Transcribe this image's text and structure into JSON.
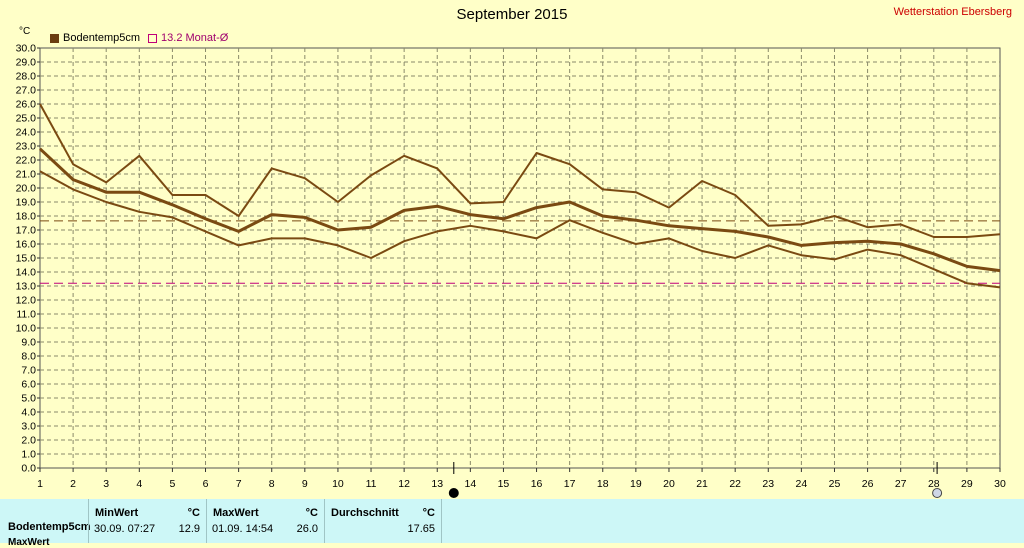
{
  "title": "September 2015",
  "station": "Wetterstation Ebersberg",
  "y_unit": "°C",
  "legend": {
    "series_label": "Bodentemp5cm",
    "avg_label": "13.2 Monat-Ø"
  },
  "colors": {
    "background": "#ffffc8",
    "series": "#7a4a12",
    "avg_line": "#c0007a",
    "grid": "#8a8a6a",
    "table_bg": "#cdf7f7"
  },
  "icons": {
    "new_moon": "new-moon-icon",
    "full_moon": "full-moon-icon"
  },
  "chart_data": {
    "type": "line",
    "title": "September 2015",
    "ylabel": "°C",
    "ylim": [
      0,
      30
    ],
    "xlim": [
      1,
      30
    ],
    "y_ticks": [
      "0.0",
      "1.0",
      "2.0",
      "3.0",
      "4.0",
      "5.0",
      "6.0",
      "7.0",
      "8.0",
      "9.0",
      "10.0",
      "11.0",
      "12.0",
      "13.0",
      "14.0",
      "15.0",
      "16.0",
      "17.0",
      "18.0",
      "19.0",
      "20.0",
      "21.0",
      "22.0",
      "23.0",
      "24.0",
      "25.0",
      "26.0",
      "27.0",
      "28.0",
      "29.0",
      "30.0"
    ],
    "x": [
      1,
      2,
      3,
      4,
      5,
      6,
      7,
      8,
      9,
      10,
      11,
      12,
      13,
      14,
      15,
      16,
      17,
      18,
      19,
      20,
      21,
      22,
      23,
      24,
      25,
      26,
      27,
      28,
      29,
      30
    ],
    "grid": true,
    "series": [
      {
        "name": "Bodentemp5cm",
        "role": "max",
        "values": [
          26.0,
          21.7,
          20.4,
          22.3,
          19.5,
          19.5,
          18.0,
          21.4,
          20.7,
          19.0,
          20.9,
          22.3,
          21.4,
          18.9,
          19.0,
          22.5,
          21.7,
          19.9,
          19.7,
          18.6,
          20.5,
          19.5,
          17.3,
          17.4,
          18.0,
          17.2,
          17.4,
          16.5,
          16.5,
          16.7
        ]
      },
      {
        "name": "Bodentemp5cm",
        "role": "mean",
        "values": [
          22.8,
          20.6,
          19.7,
          19.7,
          18.8,
          17.8,
          16.9,
          18.1,
          17.9,
          17.0,
          17.2,
          18.4,
          18.7,
          18.1,
          17.8,
          18.6,
          19.0,
          18.0,
          17.7,
          17.3,
          17.1,
          16.9,
          16.5,
          15.9,
          16.1,
          16.2,
          16.0,
          15.3,
          14.4,
          14.1
        ]
      },
      {
        "name": "Bodentemp5cm",
        "role": "min",
        "values": [
          21.2,
          19.9,
          19.0,
          18.3,
          17.9,
          16.9,
          15.9,
          16.4,
          16.4,
          15.9,
          15.0,
          16.2,
          16.9,
          17.3,
          16.9,
          16.4,
          17.7,
          16.8,
          16.0,
          16.4,
          15.5,
          15.0,
          15.9,
          15.2,
          14.9,
          15.6,
          15.2,
          14.2,
          13.2,
          12.9
        ]
      }
    ],
    "reference_lines": [
      {
        "label": "13.2 Monat-Ø",
        "value": 13.2,
        "color": "#c0007a",
        "style": "dashed"
      },
      {
        "value": 17.65,
        "color": "#7a4a12",
        "style": "dashed"
      }
    ],
    "moon_markers": [
      {
        "day": 13.5,
        "phase": "new"
      },
      {
        "day": 28.1,
        "phase": "full"
      }
    ]
  },
  "table": {
    "row_label": "Bodentemp5cm",
    "row_label_2": "MaxWert",
    "columns": [
      {
        "header": "MinWert",
        "unit": "°C",
        "time": "30.09.  07:27",
        "value": "12.9"
      },
      {
        "header": "MaxWert",
        "unit": "°C",
        "time": "01.09.  14:54",
        "value": "26.0"
      },
      {
        "header": "Durchschnitt",
        "unit": "°C",
        "time": "",
        "value": "17.65"
      }
    ]
  }
}
